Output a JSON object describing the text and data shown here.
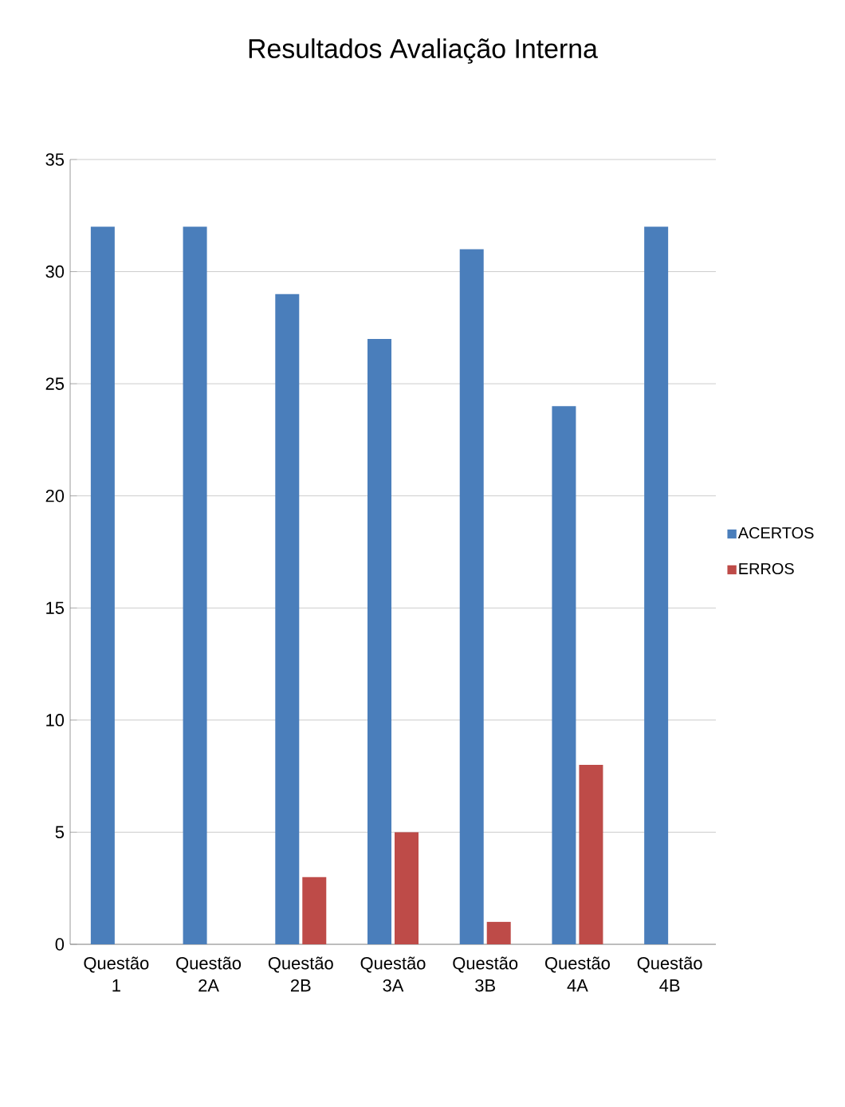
{
  "chart_data": {
    "type": "bar",
    "title": "Resultados Avaliação Interna",
    "categories": [
      "Questão 1",
      "Questão 2A",
      "Questão 2B",
      "Questão 3A",
      "Questão 3B",
      "Questão 4A",
      "Questão 4B"
    ],
    "series": [
      {
        "name": "ACERTOS",
        "color": "#4a7ebb",
        "values": [
          32,
          32,
          29,
          27,
          31,
          24,
          32
        ]
      },
      {
        "name": "ERROS",
        "color": "#be4b48",
        "values": [
          0,
          0,
          3,
          5,
          1,
          8,
          0
        ]
      }
    ],
    "ylim": [
      0,
      35
    ],
    "yticks": [
      0,
      5,
      10,
      15,
      20,
      25,
      30,
      35
    ],
    "grid": "y",
    "legend": "right"
  }
}
